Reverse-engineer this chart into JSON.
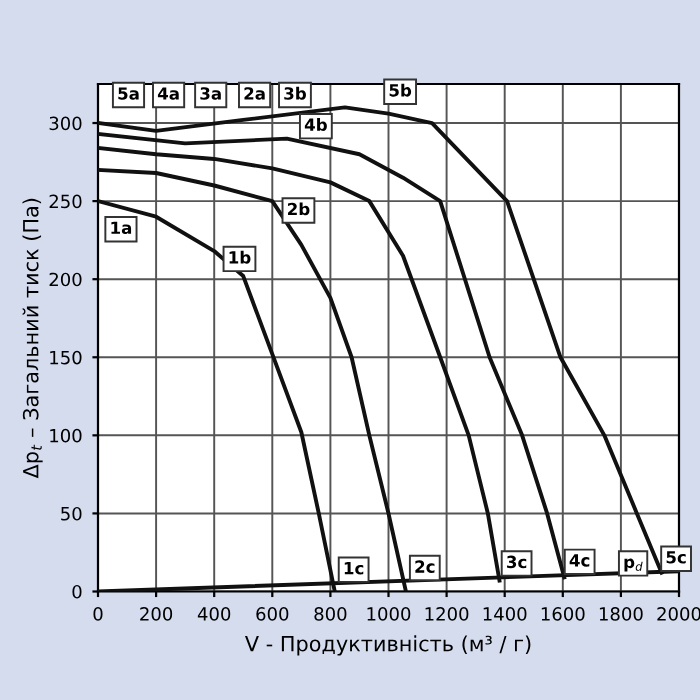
{
  "chart_data": {
    "type": "line",
    "xlabel": "V - Продуктивність (м³ / г)",
    "ylabel": "Δp$_{t}$ – Загальний тиск (Па)",
    "xlim": [
      0,
      2000
    ],
    "ylim": [
      0,
      325
    ],
    "xticks": [
      0,
      200,
      400,
      600,
      800,
      1000,
      1200,
      1400,
      1600,
      1800,
      2000
    ],
    "yticks": [
      0,
      50,
      100,
      150,
      200,
      250,
      300
    ],
    "grid": true,
    "series": [
      {
        "color": "#111111",
        "x": [
          0,
          200,
          400,
          500,
          600,
          700,
          760,
          815
        ],
        "values": [
          250,
          240,
          218,
          202,
          152,
          102,
          50,
          0
        ]
      },
      {
        "color": "#111111",
        "x": [
          0,
          200,
          400,
          600,
          700,
          800,
          873,
          934,
          1000,
          1060
        ],
        "values": [
          270,
          268,
          260,
          250,
          222,
          188,
          150,
          100,
          50,
          0
        ]
      },
      {
        "color": "#111111",
        "x": [
          0,
          200,
          400,
          600,
          800,
          934,
          1050,
          1178,
          1276,
          1342,
          1382
        ],
        "values": [
          284,
          280,
          277,
          271,
          262,
          250,
          215,
          150,
          100,
          50,
          7
        ]
      },
      {
        "color": "#111111",
        "x": [
          0,
          300,
          650,
          900,
          1050,
          1178,
          1348,
          1460,
          1546,
          1605
        ],
        "values": [
          293,
          287,
          290,
          280,
          265,
          250,
          150,
          100,
          50,
          9
        ]
      },
      {
        "color": "#111111",
        "x": [
          0,
          200,
          500,
          850,
          1000,
          1150,
          1408,
          1592,
          1743,
          1855,
          1940
        ],
        "values": [
          300,
          295,
          302,
          310,
          306,
          300,
          250,
          150,
          100,
          50,
          12
        ]
      },
      {
        "color": "#111111",
        "x": [
          0,
          2000
        ],
        "values": [
          0,
          13
        ]
      }
    ],
    "annotations": [
      {
        "text": "1a",
        "x": 79,
        "y": 232
      },
      {
        "text": "5a",
        "x": 105,
        "y": 318
      },
      {
        "text": "4a",
        "x": 243,
        "y": 318
      },
      {
        "text": "3a",
        "x": 388,
        "y": 318
      },
      {
        "text": "2a",
        "x": 539,
        "y": 318
      },
      {
        "text": "3b",
        "x": 678,
        "y": 318
      },
      {
        "text": "1b",
        "x": 487,
        "y": 213
      },
      {
        "text": "2b",
        "x": 690,
        "y": 244
      },
      {
        "text": "4b",
        "x": 750,
        "y": 298
      },
      {
        "text": "5b",
        "x": 1040,
        "y": 320
      },
      {
        "text": "1c",
        "x": 880,
        "y": 14
      },
      {
        "text": "2c",
        "x": 1125,
        "y": 15
      },
      {
        "text": "3c",
        "x": 1441,
        "y": 18
      },
      {
        "text": "4c",
        "x": 1658,
        "y": 19
      },
      {
        "text": "p$_{d}$",
        "x": 1842,
        "y": 18
      },
      {
        "text": "5c",
        "x": 1990,
        "y": 21
      }
    ]
  }
}
